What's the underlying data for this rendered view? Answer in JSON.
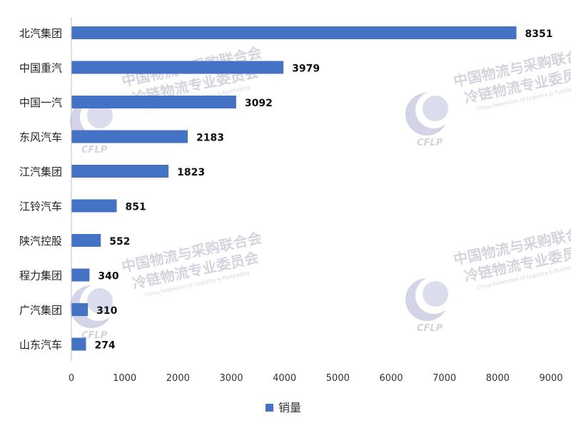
{
  "chart_data": {
    "type": "bar",
    "orientation": "horizontal",
    "categories": [
      "北汽集团",
      "中国重汽",
      "中国一汽",
      "东风汽车",
      "江汽集团",
      "江铃汽车",
      "陕汽控股",
      "程力集团",
      "广汽集团",
      "山东汽车"
    ],
    "series": [
      {
        "name": "销量",
        "values": [
          8351,
          3979,
          3092,
          2183,
          1823,
          851,
          552,
          340,
          310,
          274
        ]
      }
    ],
    "xlim": [
      0,
      9000
    ],
    "xticks": [
      0,
      1000,
      2000,
      3000,
      4000,
      5000,
      6000,
      7000,
      8000,
      9000
    ],
    "grid": false,
    "legend_position": "bottom",
    "bar_color": "#4472C4"
  },
  "watermark": {
    "line1": "中国物流与采购联合会",
    "line2": "冷链物流专业委员会",
    "subtitle": "China Federation of Logistics & Purchasing",
    "logo": "CFLP"
  }
}
